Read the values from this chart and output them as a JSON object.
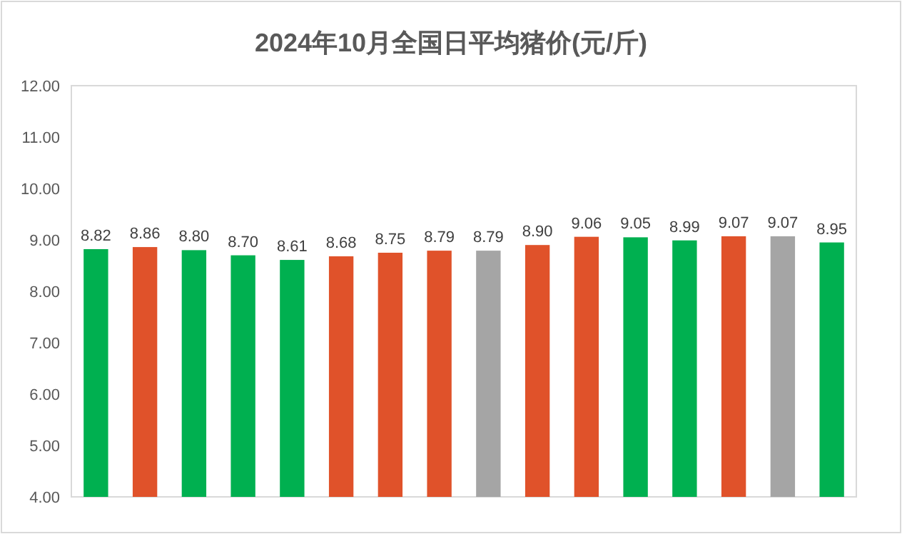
{
  "chart_data": {
    "type": "bar",
    "title": "2024年10月全国日平均猪价(元/斤)",
    "categories": [
      null,
      null,
      null,
      null,
      null,
      null,
      null,
      null,
      null,
      null,
      null,
      null,
      null,
      null,
      null,
      null
    ],
    "values": [
      8.82,
      8.86,
      8.8,
      8.7,
      8.61,
      8.68,
      8.75,
      8.79,
      8.79,
      8.9,
      9.06,
      9.05,
      8.99,
      9.07,
      9.07,
      8.95
    ],
    "colors": [
      "#00b050",
      "#e0522a",
      "#00b050",
      "#00b050",
      "#00b050",
      "#e0522a",
      "#e0522a",
      "#e0522a",
      "#a5a5a5",
      "#e0522a",
      "#e0522a",
      "#00b050",
      "#00b050",
      "#e0522a",
      "#a5a5a5",
      "#00b050"
    ],
    "value_labels": [
      "8.82",
      "8.86",
      "8.80",
      "8.70",
      "8.61",
      "8.68",
      "8.75",
      "8.79",
      "8.79",
      "8.90",
      "9.06",
      "9.05",
      "8.99",
      "9.07",
      "9.07",
      "8.95"
    ],
    "ylim": [
      4,
      12
    ],
    "yticks": [
      {
        "value": 4,
        "label": "4.00"
      },
      {
        "value": 5,
        "label": "5.00"
      },
      {
        "value": 6,
        "label": "6.00"
      },
      {
        "value": 7,
        "label": "7.00"
      },
      {
        "value": 8,
        "label": "8.00"
      },
      {
        "value": 9,
        "label": "9.00"
      },
      {
        "value": 10,
        "label": "10.00"
      },
      {
        "value": 11,
        "label": "11.00"
      },
      {
        "value": 12,
        "label": "12.00"
      }
    ]
  }
}
